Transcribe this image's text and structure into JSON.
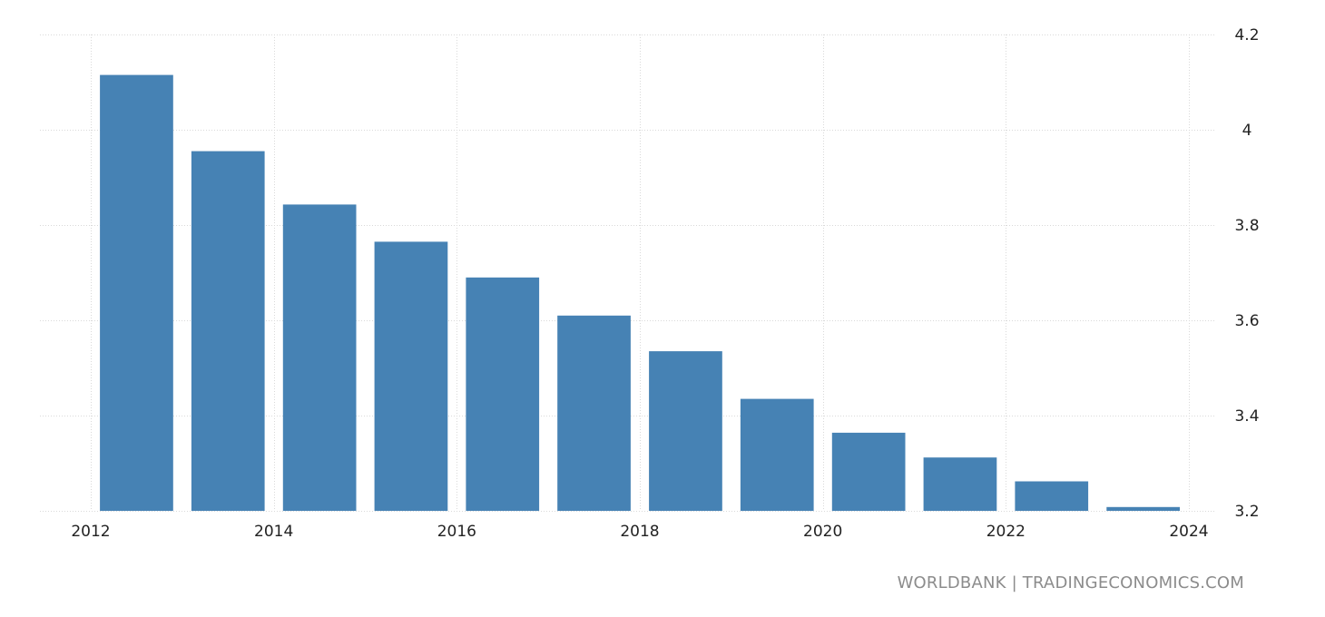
{
  "source_label": "WORLDBANK | TRADINGECONOMICS.COM",
  "chart_data": {
    "type": "bar",
    "title": "",
    "xlabel": "",
    "ylabel": "",
    "x": [
      2012.5,
      2013.5,
      2014.5,
      2015.5,
      2016.5,
      2017.5,
      2018.5,
      2019.5,
      2020.5,
      2021.5,
      2022.5,
      2023.5
    ],
    "values": [
      4.115,
      3.955,
      3.843,
      3.765,
      3.69,
      3.61,
      3.535,
      3.435,
      3.364,
      3.312,
      3.262,
      3.208
    ],
    "xlim": [
      2012,
      2024
    ],
    "ylim": [
      3.2,
      4.2
    ],
    "x_ticks": [
      2012,
      2014,
      2016,
      2018,
      2020,
      2022,
      2024
    ],
    "x_tick_labels": [
      "2012",
      "2014",
      "2016",
      "2018",
      "2020",
      "2022",
      "2024"
    ],
    "y_ticks": [
      3.2,
      3.4,
      3.6,
      3.8,
      4.0,
      4.2
    ],
    "y_tick_labels": [
      "3.2",
      "3.4",
      "3.6",
      "3.8",
      "4",
      "4.2"
    ],
    "y_axis_side": "right",
    "grid": true,
    "bar_color": "#4682b4",
    "grid_color": "#d9d9d9"
  }
}
